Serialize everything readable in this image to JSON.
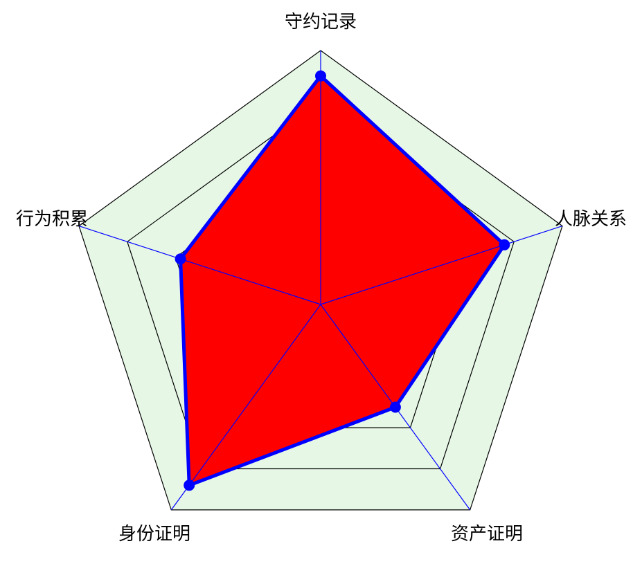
{
  "chart_data": {
    "type": "radar",
    "title": "",
    "axes": [
      "守约记录",
      "人脉关系",
      "资产证明",
      "身份证明",
      "行为积累"
    ],
    "levels": 5,
    "max": 5,
    "series": [
      {
        "values": [
          4.5,
          3.8,
          2.5,
          4.4,
          2.9
        ]
      }
    ],
    "colors": {
      "fill": "#ff0000",
      "line": "#0000ff",
      "marker": "#0000ff",
      "outer_band": "#e6f7e6",
      "grid": "#000000",
      "spoke": "#0000ff"
    }
  }
}
